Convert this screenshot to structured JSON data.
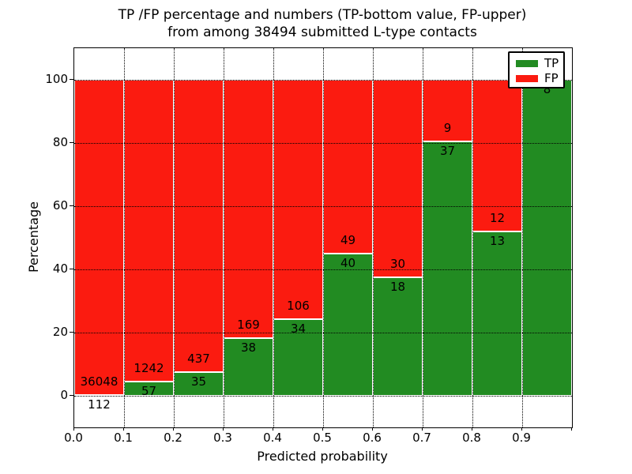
{
  "title": {
    "line1": "TP /FP percentage and numbers (TP-bottom value, FP-upper)",
    "line2": "from among 38494 submitted L-type contacts"
  },
  "axes": {
    "xlabel": "Predicted probability",
    "ylabel": "Percentage",
    "x_tick_labels": [
      "0.0",
      "0.1",
      "0.2",
      "0.3",
      "0.4",
      "0.5",
      "0.6",
      "0.7",
      "0.8",
      "0.9"
    ],
    "y_tick_labels": [
      "0",
      "20",
      "40",
      "60",
      "80",
      "100"
    ]
  },
  "legend": {
    "entries": [
      {
        "label": "TP",
        "color": "#228b22"
      },
      {
        "label": "FP",
        "color": "#fb1b10"
      }
    ]
  },
  "colors": {
    "tp_green": "#228b22",
    "fp_red": "#fb1b10",
    "bar_edge": "#ffffff",
    "grid": "#000000",
    "background": "#ffffff"
  },
  "chart_data": {
    "type": "bar",
    "subtype": "stacked-percentage",
    "title": "TP /FP percentage and numbers (TP-bottom value, FP-upper) from among 38494 submitted L-type contacts",
    "xlabel": "Predicted probability",
    "ylabel": "Percentage",
    "total_contacts": 38494,
    "xlim": [
      0.0,
      1.0
    ],
    "ylim": [
      -10,
      110
    ],
    "x_ticks": [
      0.0,
      0.1,
      0.2,
      0.3,
      0.4,
      0.5,
      0.6,
      0.7,
      0.8,
      0.9
    ],
    "y_ticks": [
      0,
      20,
      40,
      60,
      80,
      100
    ],
    "grid": "dotted-both-axes",
    "legend_position": "upper right",
    "series_names": [
      "TP",
      "FP"
    ],
    "bins": [
      {
        "x0": 0.0,
        "x1": 0.1,
        "tp": 112,
        "fp": 36048,
        "tp_pct": 0.31,
        "tp_label": "112",
        "fp_label": "36048"
      },
      {
        "x0": 0.1,
        "x1": 0.2,
        "tp": 57,
        "fp": 1242,
        "tp_pct": 4.39,
        "tp_label": "57",
        "fp_label": "1242"
      },
      {
        "x0": 0.2,
        "x1": 0.3,
        "tp": 35,
        "fp": 437,
        "tp_pct": 7.42,
        "tp_label": "35",
        "fp_label": "437"
      },
      {
        "x0": 0.3,
        "x1": 0.4,
        "tp": 38,
        "fp": 169,
        "tp_pct": 18.36,
        "tp_label": "38",
        "fp_label": "169"
      },
      {
        "x0": 0.4,
        "x1": 0.5,
        "tp": 34,
        "fp": 106,
        "tp_pct": 24.29,
        "tp_label": "34",
        "fp_label": "106"
      },
      {
        "x0": 0.5,
        "x1": 0.6,
        "tp": 40,
        "fp": 49,
        "tp_pct": 44.94,
        "tp_label": "40",
        "fp_label": "49"
      },
      {
        "x0": 0.6,
        "x1": 0.7,
        "tp": 18,
        "fp": 30,
        "tp_pct": 37.5,
        "tp_label": "18",
        "fp_label": "30"
      },
      {
        "x0": 0.7,
        "x1": 0.8,
        "tp": 37,
        "fp": 9,
        "tp_pct": 80.43,
        "tp_label": "37",
        "fp_label": "9"
      },
      {
        "x0": 0.8,
        "x1": 0.9,
        "tp": 13,
        "fp": 12,
        "tp_pct": 52.0,
        "tp_label": "13",
        "fp_label": "12"
      },
      {
        "x0": 0.9,
        "x1": 1.0,
        "tp": 8,
        "fp": null,
        "tp_pct": 100.0,
        "tp_label": "8",
        "fp_label": ""
      }
    ]
  }
}
